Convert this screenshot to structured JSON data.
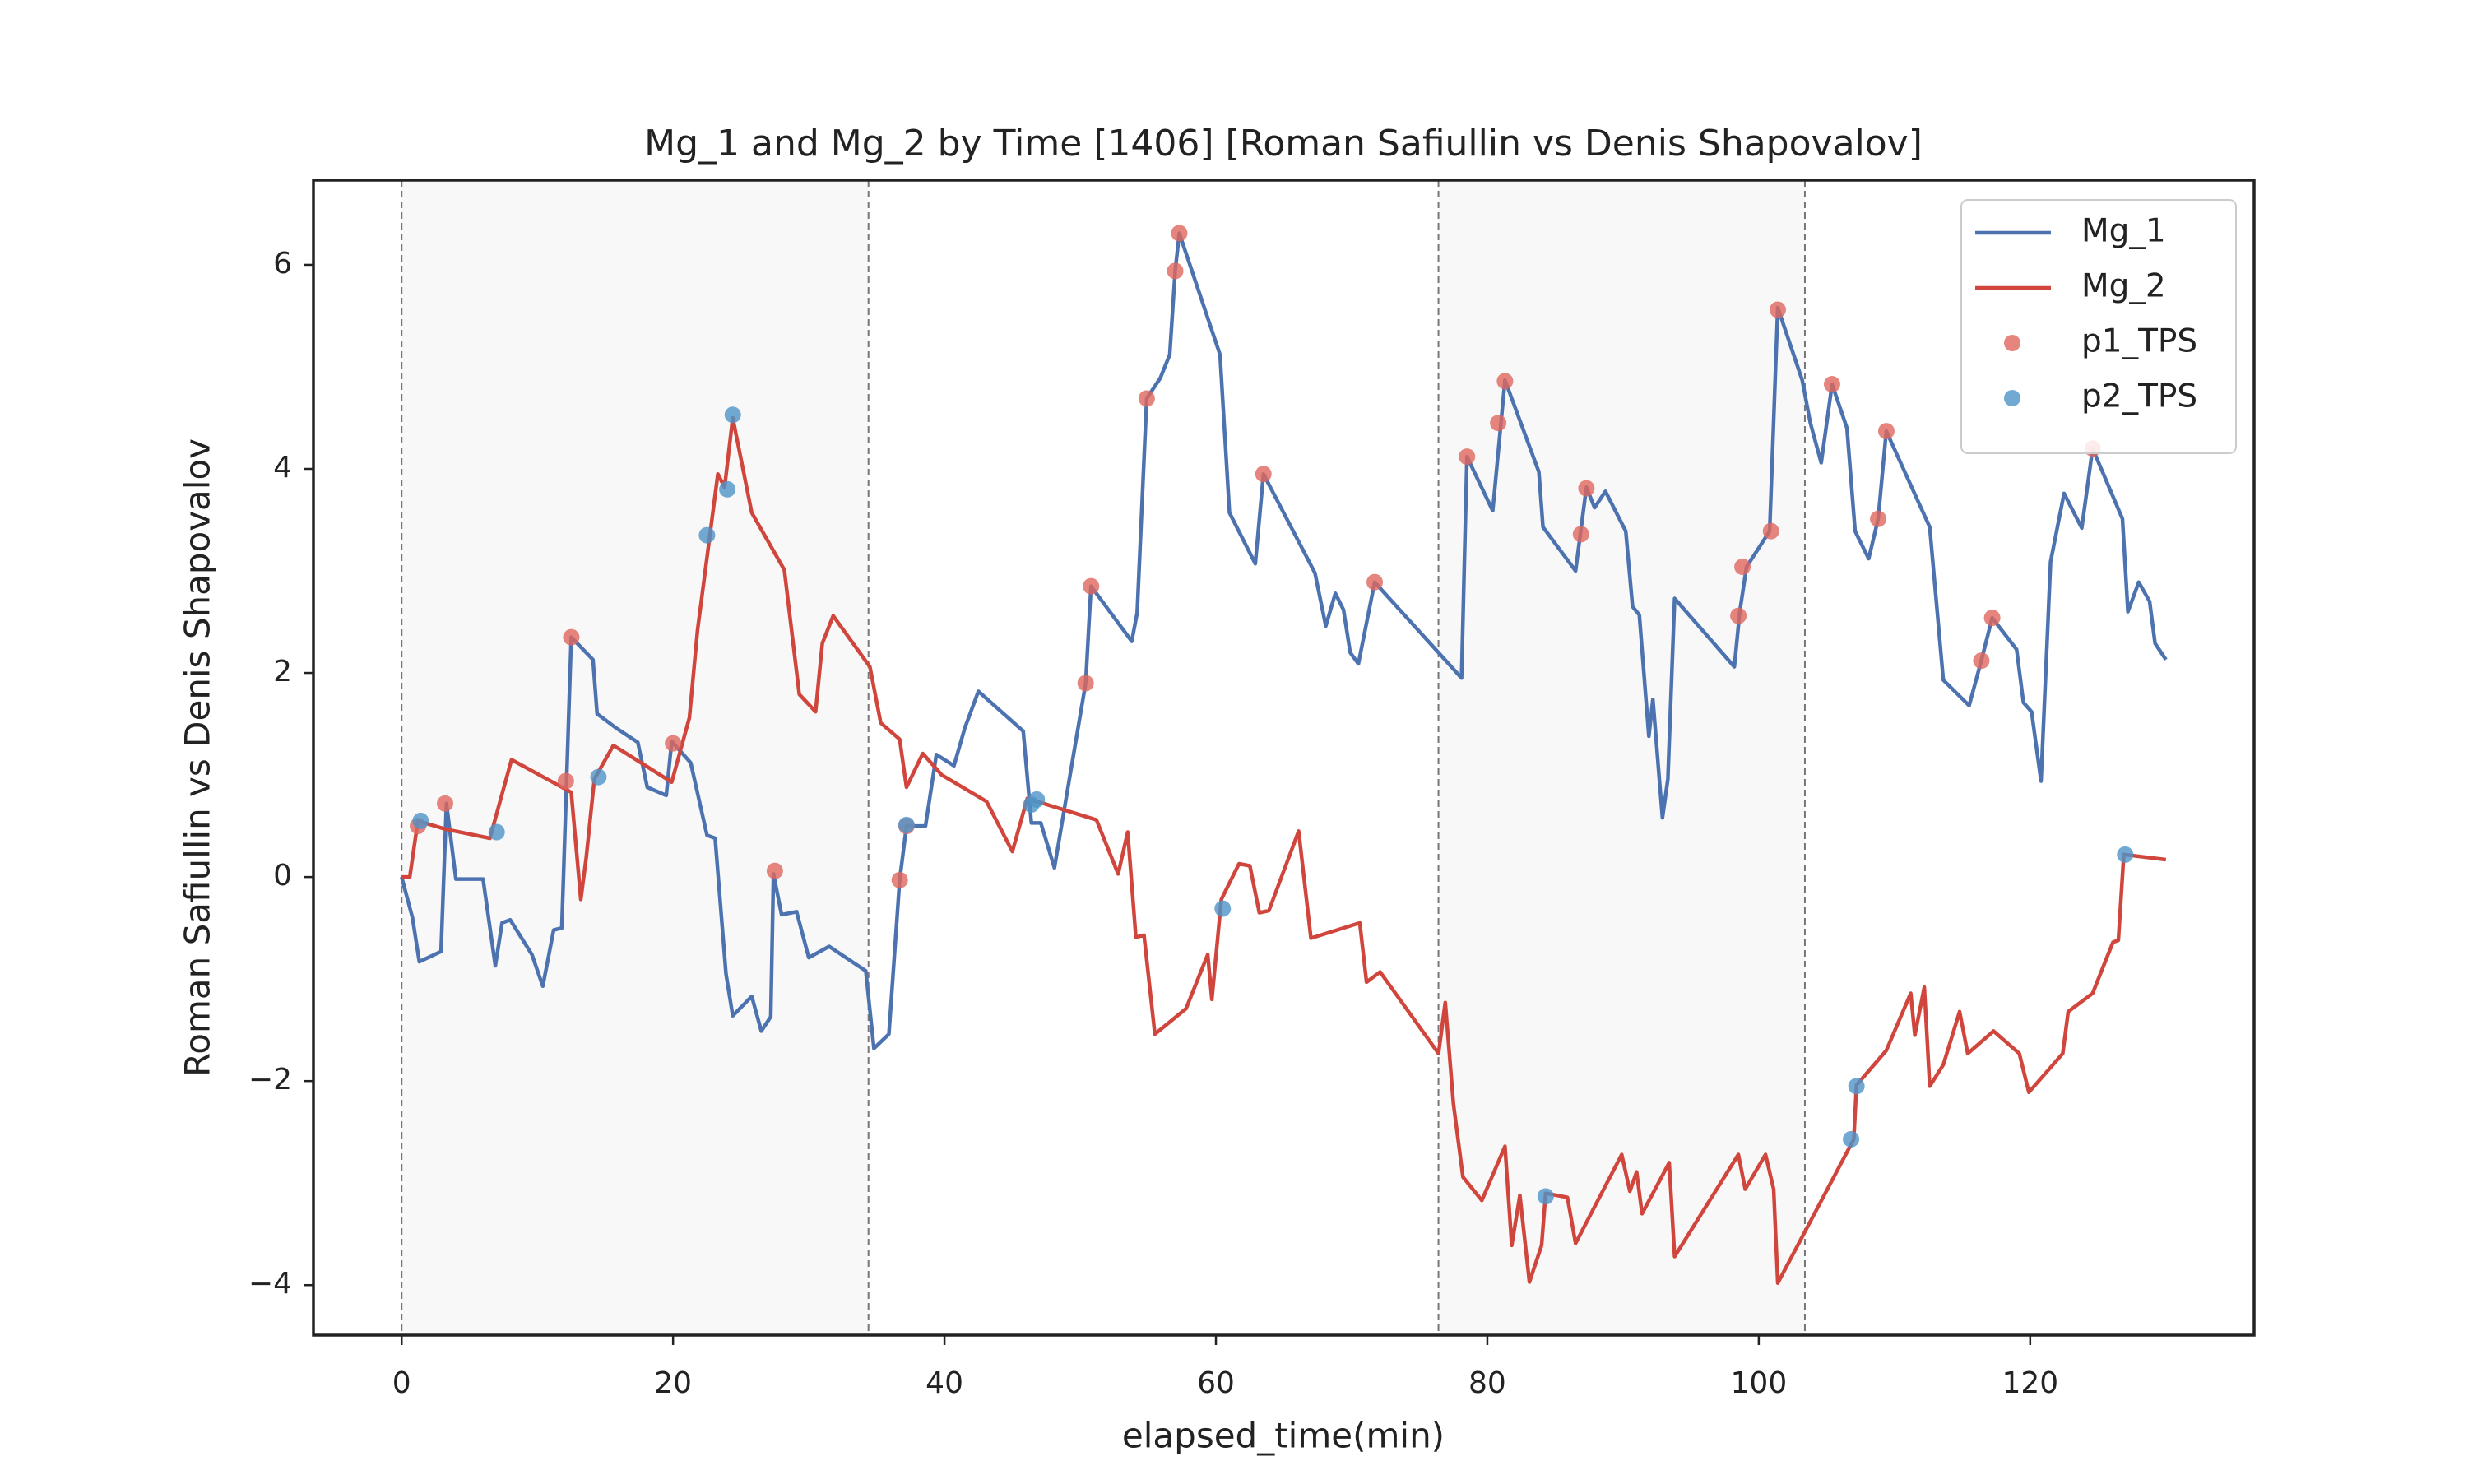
{
  "chart_data": {
    "type": "line",
    "title": "Mg_1 and Mg_2 by Time [1406] [Roman Safiullin vs Denis Shapovalov]",
    "x_label": "elapsed_time(min)",
    "y_label": "Roman Safiullin vs Denis Shapovalov",
    "xlim": [
      -6.5,
      136.5
    ],
    "ylim": [
      -4.49,
      6.83
    ],
    "xticks": [
      0,
      20,
      40,
      60,
      80,
      100,
      120
    ],
    "yticks": [
      {
        "value": -4,
        "label": "−4"
      },
      {
        "value": -2,
        "label": "−2"
      },
      0,
      2,
      4,
      6
    ],
    "shaded_spans": [
      [
        0,
        34.4
      ],
      [
        76.4,
        103.4
      ]
    ],
    "vlines": [
      0,
      34.4,
      76.4,
      103.4
    ],
    "legend": "upper right",
    "series": [
      {
        "name": "Mg_1",
        "type": "line",
        "color": "#4c72b0",
        "x": [
          0,
          0.8,
          1.3,
          2.9,
          3.3,
          4,
          6,
          6.9,
          7.4,
          8,
          9.6,
          10.4,
          11.2,
          11.8,
          12.5,
          14.1,
          14.4,
          15.8,
          17.4,
          18.1,
          19.5,
          19.9,
          21.3,
          22.5,
          23.1,
          23.9,
          24.4,
          25.8,
          26.5,
          27.2,
          27.4,
          28,
          29.1,
          30,
          31.5,
          34.2,
          34.8,
          35.9,
          36.7,
          37.2,
          38.6,
          39.4,
          40.7,
          41.5,
          42.5,
          45.8,
          46.4,
          47.1,
          48.1,
          49.2,
          50.4,
          50.8,
          53.8,
          54.2,
          54.9,
          55.9,
          56.6,
          57,
          57.3,
          60.3,
          61,
          62.9,
          63.5,
          67.3,
          68.1,
          68.8,
          69.4,
          69.9,
          70.5,
          71.7,
          78.1,
          78.5,
          80.4,
          81.3,
          83.8,
          84.1,
          86.5,
          87.3,
          87.9,
          88.7,
          90.2,
          90.7,
          91.2,
          91.9,
          92.2,
          92.9,
          93.3,
          93.8,
          98.2,
          98.6,
          99.1,
          100.8,
          101.4,
          103.2,
          103.8,
          104.6,
          105.4,
          106.5,
          107.1,
          108.1,
          108.8,
          109.4,
          112.6,
          113.6,
          115.5,
          116.4,
          117.2,
          119,
          119.5,
          120.1,
          120.8,
          121.5,
          122.5,
          123.8,
          124.6,
          126.8,
          127.2,
          128,
          128.8,
          129.2,
          130
        ],
        "values": [
          0,
          -0.4,
          -0.83,
          -0.73,
          0.72,
          -0.02,
          -0.02,
          -0.87,
          -0.45,
          -0.42,
          -0.76,
          -1.07,
          -0.52,
          -0.5,
          2.35,
          2.13,
          1.6,
          1.46,
          1.32,
          0.88,
          0.8,
          1.33,
          1.12,
          0.41,
          0.38,
          -0.95,
          -1.36,
          -1.17,
          -1.51,
          -1.37,
          0.03,
          -0.37,
          -0.34,
          -0.79,
          -0.68,
          -0.92,
          -1.68,
          -1.54,
          -0.03,
          0.5,
          0.5,
          1.2,
          1.09,
          1.46,
          1.82,
          1.43,
          0.53,
          0.53,
          0.09,
          0.96,
          1.9,
          2.85,
          2.31,
          2.59,
          4.69,
          4.89,
          5.12,
          5.94,
          6.31,
          5.12,
          3.57,
          3.07,
          3.95,
          2.98,
          2.46,
          2.78,
          2.62,
          2.2,
          2.09,
          2.89,
          1.95,
          4.12,
          3.59,
          4.87,
          3.97,
          3.43,
          3.0,
          3.82,
          3.62,
          3.78,
          3.39,
          2.65,
          2.57,
          1.38,
          1.74,
          0.58,
          0.96,
          2.73,
          2.06,
          2.6,
          3.04,
          3.39,
          5.58,
          4.87,
          4.45,
          4.06,
          4.83,
          4.4,
          3.39,
          3.12,
          3.51,
          4.37,
          3.43,
          1.93,
          1.68,
          2.12,
          2.54,
          2.23,
          1.71,
          1.62,
          0.94,
          3.09,
          3.76,
          3.42,
          4.2,
          3.51,
          2.6,
          2.89,
          2.7,
          2.29,
          2.13
        ]
      },
      {
        "name": "Mg_2",
        "type": "line",
        "color": "#d0463c",
        "x": [
          0,
          0.6,
          1.2,
          3.2,
          6.5,
          8.1,
          12.5,
          13.2,
          13.6,
          14.2,
          15.6,
          19.9,
          21.2,
          21.8,
          23.3,
          23.8,
          24.4,
          25.8,
          28.2,
          29.3,
          30.5,
          31,
          31.8,
          34.5,
          35.3,
          36.7,
          37.2,
          38.4,
          39.8,
          43.1,
          45,
          46.1,
          51.2,
          52.8,
          53.5,
          54.1,
          54.7,
          55.5,
          57.8,
          59.4,
          59.7,
          60.4,
          61.7,
          62.5,
          63.2,
          63.9,
          66.1,
          67,
          70.6,
          71.1,
          72.1,
          76.4,
          76.9,
          77.5,
          78.2,
          79.6,
          81.3,
          81.8,
          82.4,
          83.1,
          84,
          84.3,
          85.9,
          86.5,
          89.9,
          90.5,
          91,
          91.4,
          93.4,
          93.8,
          98.5,
          99,
          100.5,
          101.1,
          101.4,
          107,
          107.2,
          109.4,
          111.2,
          111.5,
          112.2,
          112.6,
          113.6,
          114.8,
          115.4,
          117.3,
          119.2,
          119.9,
          122.4,
          122.8,
          124.6,
          126.1,
          126.5,
          126.9,
          130
        ],
        "values": [
          0,
          0,
          0.55,
          0.47,
          0.38,
          1.15,
          0.83,
          -0.22,
          0.19,
          0.96,
          1.29,
          0.93,
          1.56,
          2.42,
          3.95,
          3.82,
          4.5,
          3.57,
          3.01,
          1.79,
          1.62,
          2.29,
          2.56,
          2.06,
          1.51,
          1.35,
          0.88,
          1.21,
          1.0,
          0.74,
          0.25,
          0.77,
          0.56,
          0.03,
          0.44,
          -0.59,
          -0.57,
          -1.54,
          -1.29,
          -0.76,
          -1.2,
          -0.22,
          0.13,
          0.11,
          -0.35,
          -0.33,
          0.45,
          -0.6,
          -0.45,
          -1.03,
          -0.93,
          -1.73,
          -1.23,
          -2.22,
          -2.94,
          -3.17,
          -2.64,
          -3.61,
          -3.12,
          -3.97,
          -3.61,
          -3.1,
          -3.14,
          -3.59,
          -2.72,
          -3.08,
          -2.89,
          -3.3,
          -2.8,
          -3.72,
          -2.72,
          -3.06,
          -2.72,
          -3.06,
          -3.98,
          -2.57,
          -2.04,
          -1.7,
          -1.14,
          -1.55,
          -1.08,
          -2.05,
          -1.84,
          -1.32,
          -1.73,
          -1.51,
          -1.73,
          -2.11,
          -1.73,
          -1.32,
          -1.14,
          -0.64,
          -0.62,
          0.22,
          0.17
        ]
      },
      {
        "name": "p1_TPS",
        "type": "scatter",
        "color": "#e0665e",
        "x": [
          1.2,
          3.2,
          12.5,
          12.1,
          20,
          27.5,
          36.7,
          37.2,
          50.4,
          50.8,
          54.9,
          57,
          57.3,
          63.5,
          71.7,
          78.5,
          80.8,
          81.3,
          86.9,
          87.3,
          98.5,
          98.8,
          100.9,
          101.4,
          105.4,
          108.8,
          109.4,
          116.4,
          117.2,
          124.6
        ],
        "values": [
          0.5,
          0.72,
          2.35,
          0.94,
          1.31,
          0.06,
          -0.03,
          0.5,
          1.9,
          2.85,
          4.69,
          5.94,
          6.31,
          3.95,
          2.89,
          4.12,
          4.45,
          4.86,
          3.36,
          3.81,
          2.56,
          3.04,
          3.39,
          5.56,
          4.83,
          3.51,
          4.37,
          2.12,
          2.54,
          4.2
        ]
      },
      {
        "name": "p2_TPS",
        "type": "scatter",
        "color": "#4f93c8",
        "x": [
          1.4,
          7,
          14.5,
          22.5,
          24,
          24.4,
          37.2,
          46.4,
          46.8,
          60.5,
          84.3,
          106.8,
          107.2,
          127
        ],
        "values": [
          0.55,
          0.44,
          0.98,
          3.35,
          3.8,
          4.53,
          0.51,
          0.71,
          0.76,
          -0.31,
          -3.13,
          -2.57,
          -2.05,
          0.22
        ]
      }
    ]
  }
}
